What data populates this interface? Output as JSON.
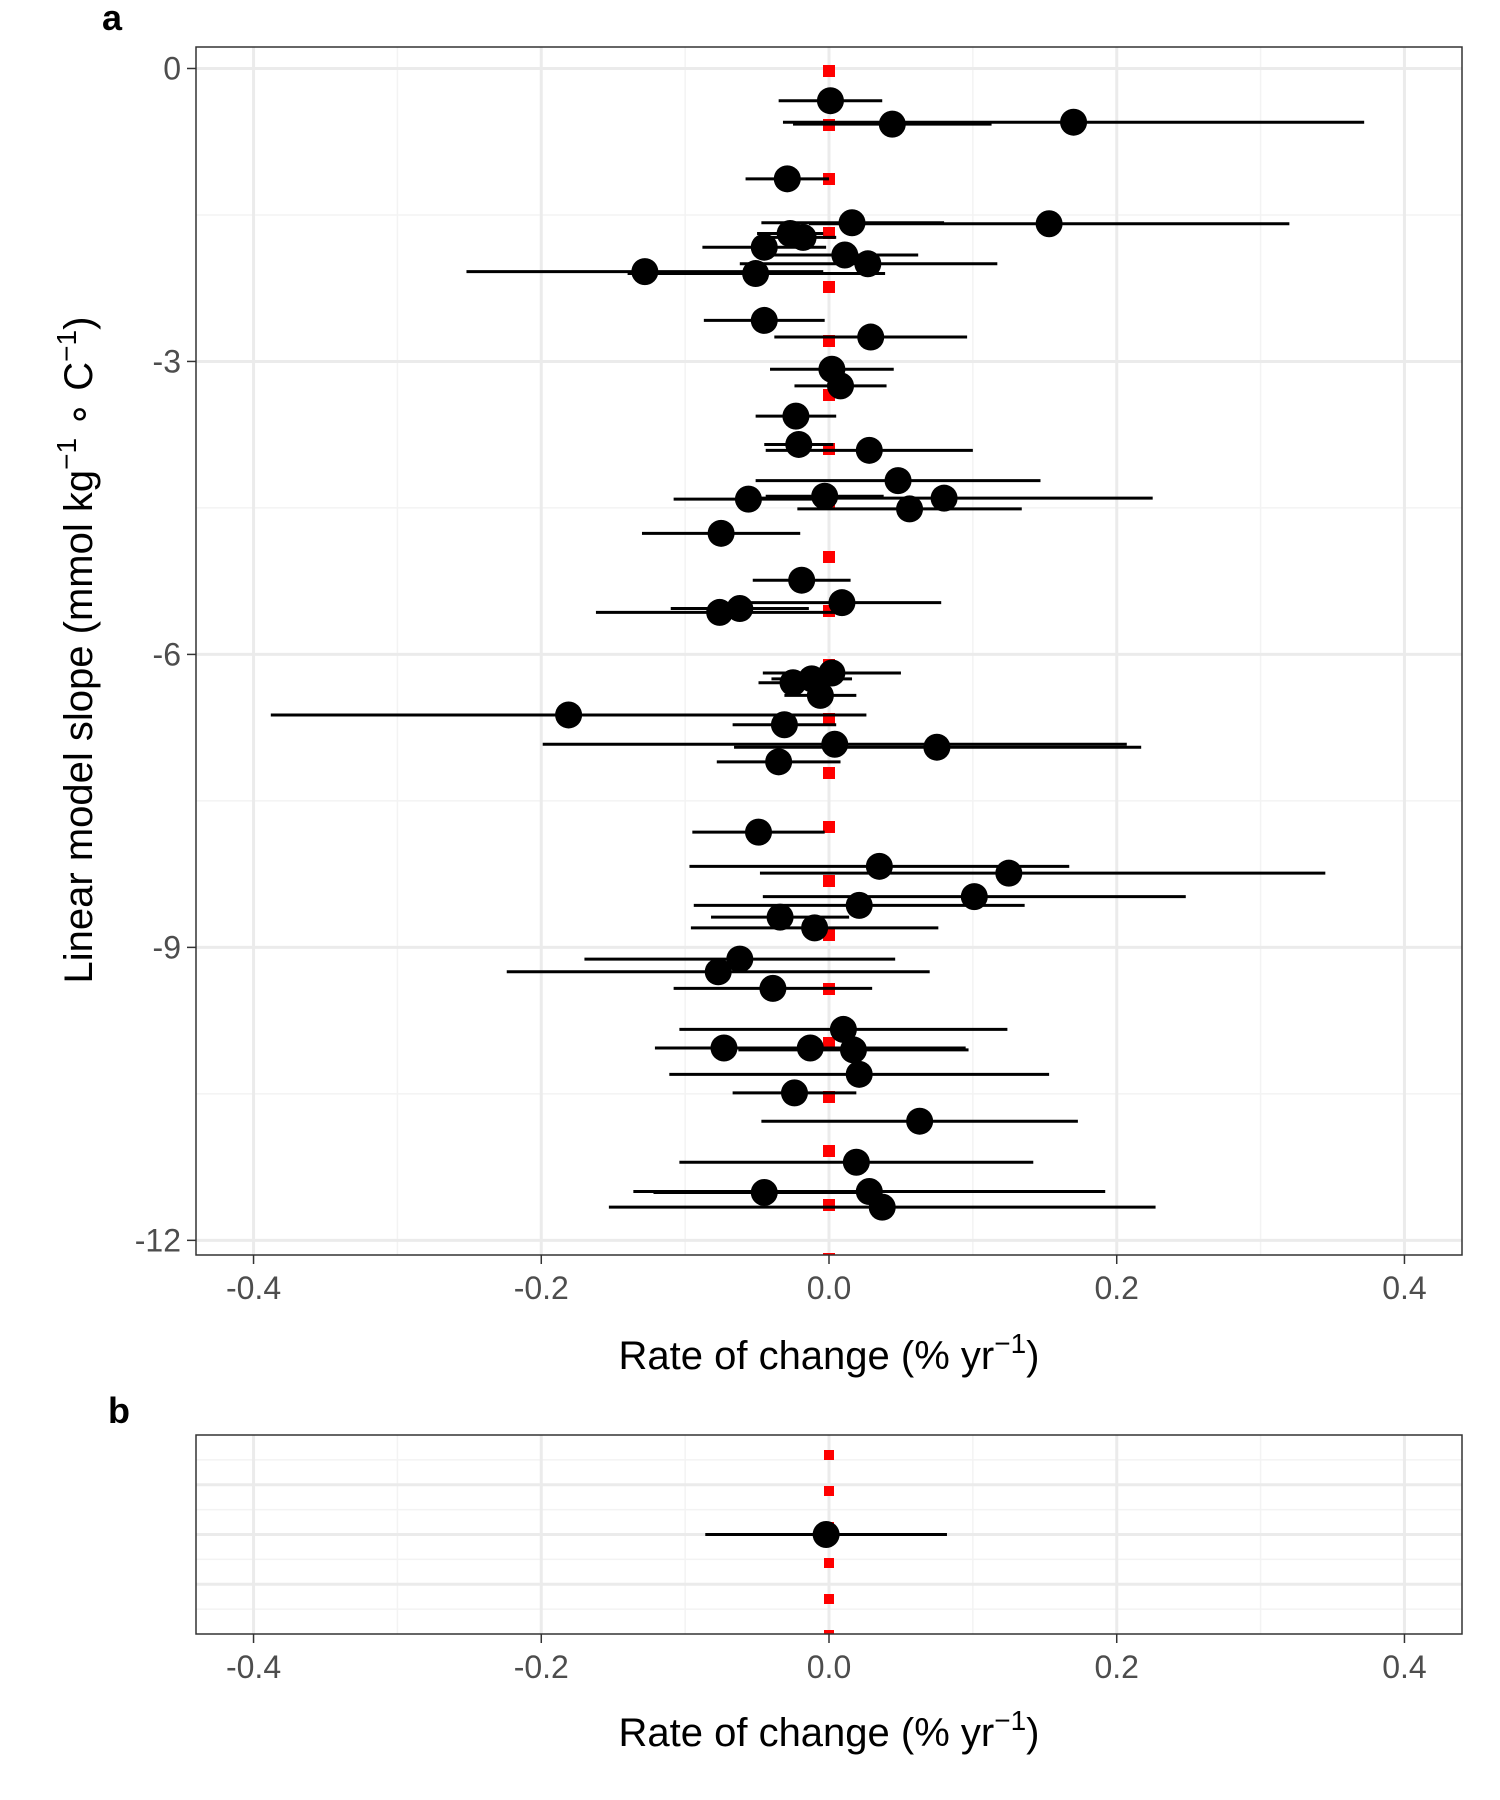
{
  "chart_data": [
    {
      "panel_label": "a",
      "type": "scatter",
      "xlabel": "Rate of change (% yr",
      "xlabel_sup": "−1",
      "xlabel_close": ")",
      "ylabel_parts": [
        "Linear model slope (mmol kg",
        "−1",
        " ∘ C",
        "−1",
        ")"
      ],
      "xlim": [
        -0.44,
        0.44
      ],
      "ylim": [
        -12.15,
        0.22
      ],
      "xticks": [
        -0.4,
        -0.2,
        0.0,
        0.2,
        0.4
      ],
      "xtick_labels": [
        "-0.4",
        "-0.2",
        "0.0",
        "0.2",
        "0.4"
      ],
      "yticks": [
        0,
        -3,
        -6,
        -9,
        -12
      ],
      "ytick_labels": [
        "0",
        "-3",
        "-6",
        "-9",
        "-12"
      ],
      "grid": true,
      "reference_line_x": 0,
      "points": [
        {
          "y": -0.33,
          "x": 0.001,
          "lo": -0.035,
          "hi": 0.037
        },
        {
          "y": -0.55,
          "x": 0.17,
          "lo": -0.032,
          "hi": 0.372
        },
        {
          "y": -0.57,
          "x": 0.044,
          "lo": -0.025,
          "hi": 0.113
        },
        {
          "y": -1.13,
          "x": -0.029,
          "lo": -0.058,
          "hi": 0.0
        },
        {
          "y": -1.58,
          "x": 0.016,
          "lo": -0.047,
          "hi": 0.08
        },
        {
          "y": -1.59,
          "x": 0.153,
          "lo": -0.014,
          "hi": 0.32
        },
        {
          "y": -1.69,
          "x": -0.027,
          "lo": -0.05,
          "hi": -0.004
        },
        {
          "y": -1.73,
          "x": -0.018,
          "lo": -0.041,
          "hi": 0.005
        },
        {
          "y": -1.83,
          "x": -0.045,
          "lo": -0.088,
          "hi": -0.002
        },
        {
          "y": -1.91,
          "x": 0.011,
          "lo": -0.04,
          "hi": 0.062
        },
        {
          "y": -2.0,
          "x": 0.027,
          "lo": -0.062,
          "hi": 0.117
        },
        {
          "y": -2.08,
          "x": -0.128,
          "lo": -0.252,
          "hi": -0.004
        },
        {
          "y": -2.1,
          "x": -0.051,
          "lo": -0.14,
          "hi": 0.039
        },
        {
          "y": -2.58,
          "x": -0.045,
          "lo": -0.087,
          "hi": -0.003
        },
        {
          "y": -2.75,
          "x": 0.029,
          "lo": -0.038,
          "hi": 0.096
        },
        {
          "y": -3.08,
          "x": 0.002,
          "lo": -0.041,
          "hi": 0.045
        },
        {
          "y": -3.25,
          "x": 0.008,
          "lo": -0.024,
          "hi": 0.04
        },
        {
          "y": -3.56,
          "x": -0.023,
          "lo": -0.051,
          "hi": 0.005
        },
        {
          "y": -3.85,
          "x": -0.021,
          "lo": -0.045,
          "hi": 0.003
        },
        {
          "y": -3.91,
          "x": 0.028,
          "lo": -0.044,
          "hi": 0.1
        },
        {
          "y": -4.22,
          "x": 0.048,
          "lo": -0.051,
          "hi": 0.147
        },
        {
          "y": -4.38,
          "x": -0.003,
          "lo": -0.044,
          "hi": 0.038
        },
        {
          "y": -4.4,
          "x": 0.08,
          "lo": -0.065,
          "hi": 0.225
        },
        {
          "y": -4.41,
          "x": -0.056,
          "lo": -0.108,
          "hi": -0.004
        },
        {
          "y": -4.51,
          "x": 0.056,
          "lo": -0.022,
          "hi": 0.134
        },
        {
          "y": -4.76,
          "x": -0.075,
          "lo": -0.13,
          "hi": -0.02
        },
        {
          "y": -5.24,
          "x": -0.019,
          "lo": -0.053,
          "hi": 0.015
        },
        {
          "y": -5.47,
          "x": 0.009,
          "lo": -0.06,
          "hi": 0.078
        },
        {
          "y": -5.53,
          "x": -0.062,
          "lo": -0.11,
          "hi": -0.014
        },
        {
          "y": -5.57,
          "x": -0.076,
          "lo": -0.162,
          "hi": 0.01
        },
        {
          "y": -6.19,
          "x": 0.002,
          "lo": -0.046,
          "hi": 0.05
        },
        {
          "y": -6.25,
          "x": -0.012,
          "lo": -0.04,
          "hi": 0.016
        },
        {
          "y": -6.29,
          "x": -0.025,
          "lo": -0.049,
          "hi": -0.001
        },
        {
          "y": -6.42,
          "x": -0.006,
          "lo": -0.031,
          "hi": 0.019
        },
        {
          "y": -6.62,
          "x": -0.181,
          "lo": -0.388,
          "hi": 0.026
        },
        {
          "y": -6.72,
          "x": -0.031,
          "lo": -0.067,
          "hi": 0.005
        },
        {
          "y": -6.92,
          "x": 0.004,
          "lo": -0.199,
          "hi": 0.207
        },
        {
          "y": -6.95,
          "x": 0.075,
          "lo": -0.066,
          "hi": 0.217
        },
        {
          "y": -7.1,
          "x": -0.035,
          "lo": -0.078,
          "hi": 0.008
        },
        {
          "y": -7.82,
          "x": -0.049,
          "lo": -0.095,
          "hi": -0.003
        },
        {
          "y": -8.17,
          "x": 0.035,
          "lo": -0.097,
          "hi": 0.167
        },
        {
          "y": -8.24,
          "x": 0.125,
          "lo": -0.048,
          "hi": 0.345
        },
        {
          "y": -8.48,
          "x": 0.101,
          "lo": -0.046,
          "hi": 0.248
        },
        {
          "y": -8.57,
          "x": 0.021,
          "lo": -0.094,
          "hi": 0.136
        },
        {
          "y": -8.69,
          "x": -0.034,
          "lo": -0.082,
          "hi": 0.014
        },
        {
          "y": -8.8,
          "x": -0.01,
          "lo": -0.096,
          "hi": 0.076
        },
        {
          "y": -9.12,
          "x": -0.062,
          "lo": -0.17,
          "hi": 0.046
        },
        {
          "y": -9.25,
          "x": -0.077,
          "lo": -0.224,
          "hi": 0.07
        },
        {
          "y": -9.42,
          "x": -0.039,
          "lo": -0.108,
          "hi": 0.03
        },
        {
          "y": -9.84,
          "x": 0.01,
          "lo": -0.104,
          "hi": 0.124
        },
        {
          "y": -10.03,
          "x": -0.073,
          "lo": -0.117,
          "hi": -0.029
        },
        {
          "y": -10.03,
          "x": -0.013,
          "lo": -0.121,
          "hi": 0.095
        },
        {
          "y": -10.05,
          "x": 0.017,
          "lo": -0.063,
          "hi": 0.097
        },
        {
          "y": -10.3,
          "x": 0.021,
          "lo": -0.111,
          "hi": 0.153
        },
        {
          "y": -10.49,
          "x": -0.024,
          "lo": -0.067,
          "hi": 0.019
        },
        {
          "y": -10.78,
          "x": 0.063,
          "lo": -0.047,
          "hi": 0.173
        },
        {
          "y": -11.2,
          "x": 0.019,
          "lo": -0.104,
          "hi": 0.142
        },
        {
          "y": -11.5,
          "x": 0.028,
          "lo": -0.136,
          "hi": 0.192
        },
        {
          "y": -11.51,
          "x": -0.045,
          "lo": -0.122,
          "hi": 0.032
        },
        {
          "y": -11.66,
          "x": 0.037,
          "lo": -0.153,
          "hi": 0.227
        }
      ]
    },
    {
      "panel_label": "b",
      "type": "scatter",
      "xlabel": "Rate of change (% yr",
      "xlabel_sup": "−1",
      "xlabel_close": ")",
      "xlim": [
        -0.44,
        0.44
      ],
      "xticks": [
        -0.4,
        -0.2,
        0.0,
        0.2,
        0.4
      ],
      "xtick_labels": [
        "-0.4",
        "-0.2",
        "0.0",
        "0.2",
        "0.4"
      ],
      "grid": true,
      "reference_line_x": 0,
      "points": [
        {
          "x": -0.002,
          "lo": -0.086,
          "hi": 0.082
        }
      ]
    }
  ],
  "colors": {
    "point": "#000000",
    "errorbar": "#000000",
    "reference_line": "#ff0000",
    "grid_major": "#ebebeb",
    "grid_minor": "#f3f3f3",
    "panel_border": "#333333",
    "tick_text": "#4d4d4d"
  }
}
